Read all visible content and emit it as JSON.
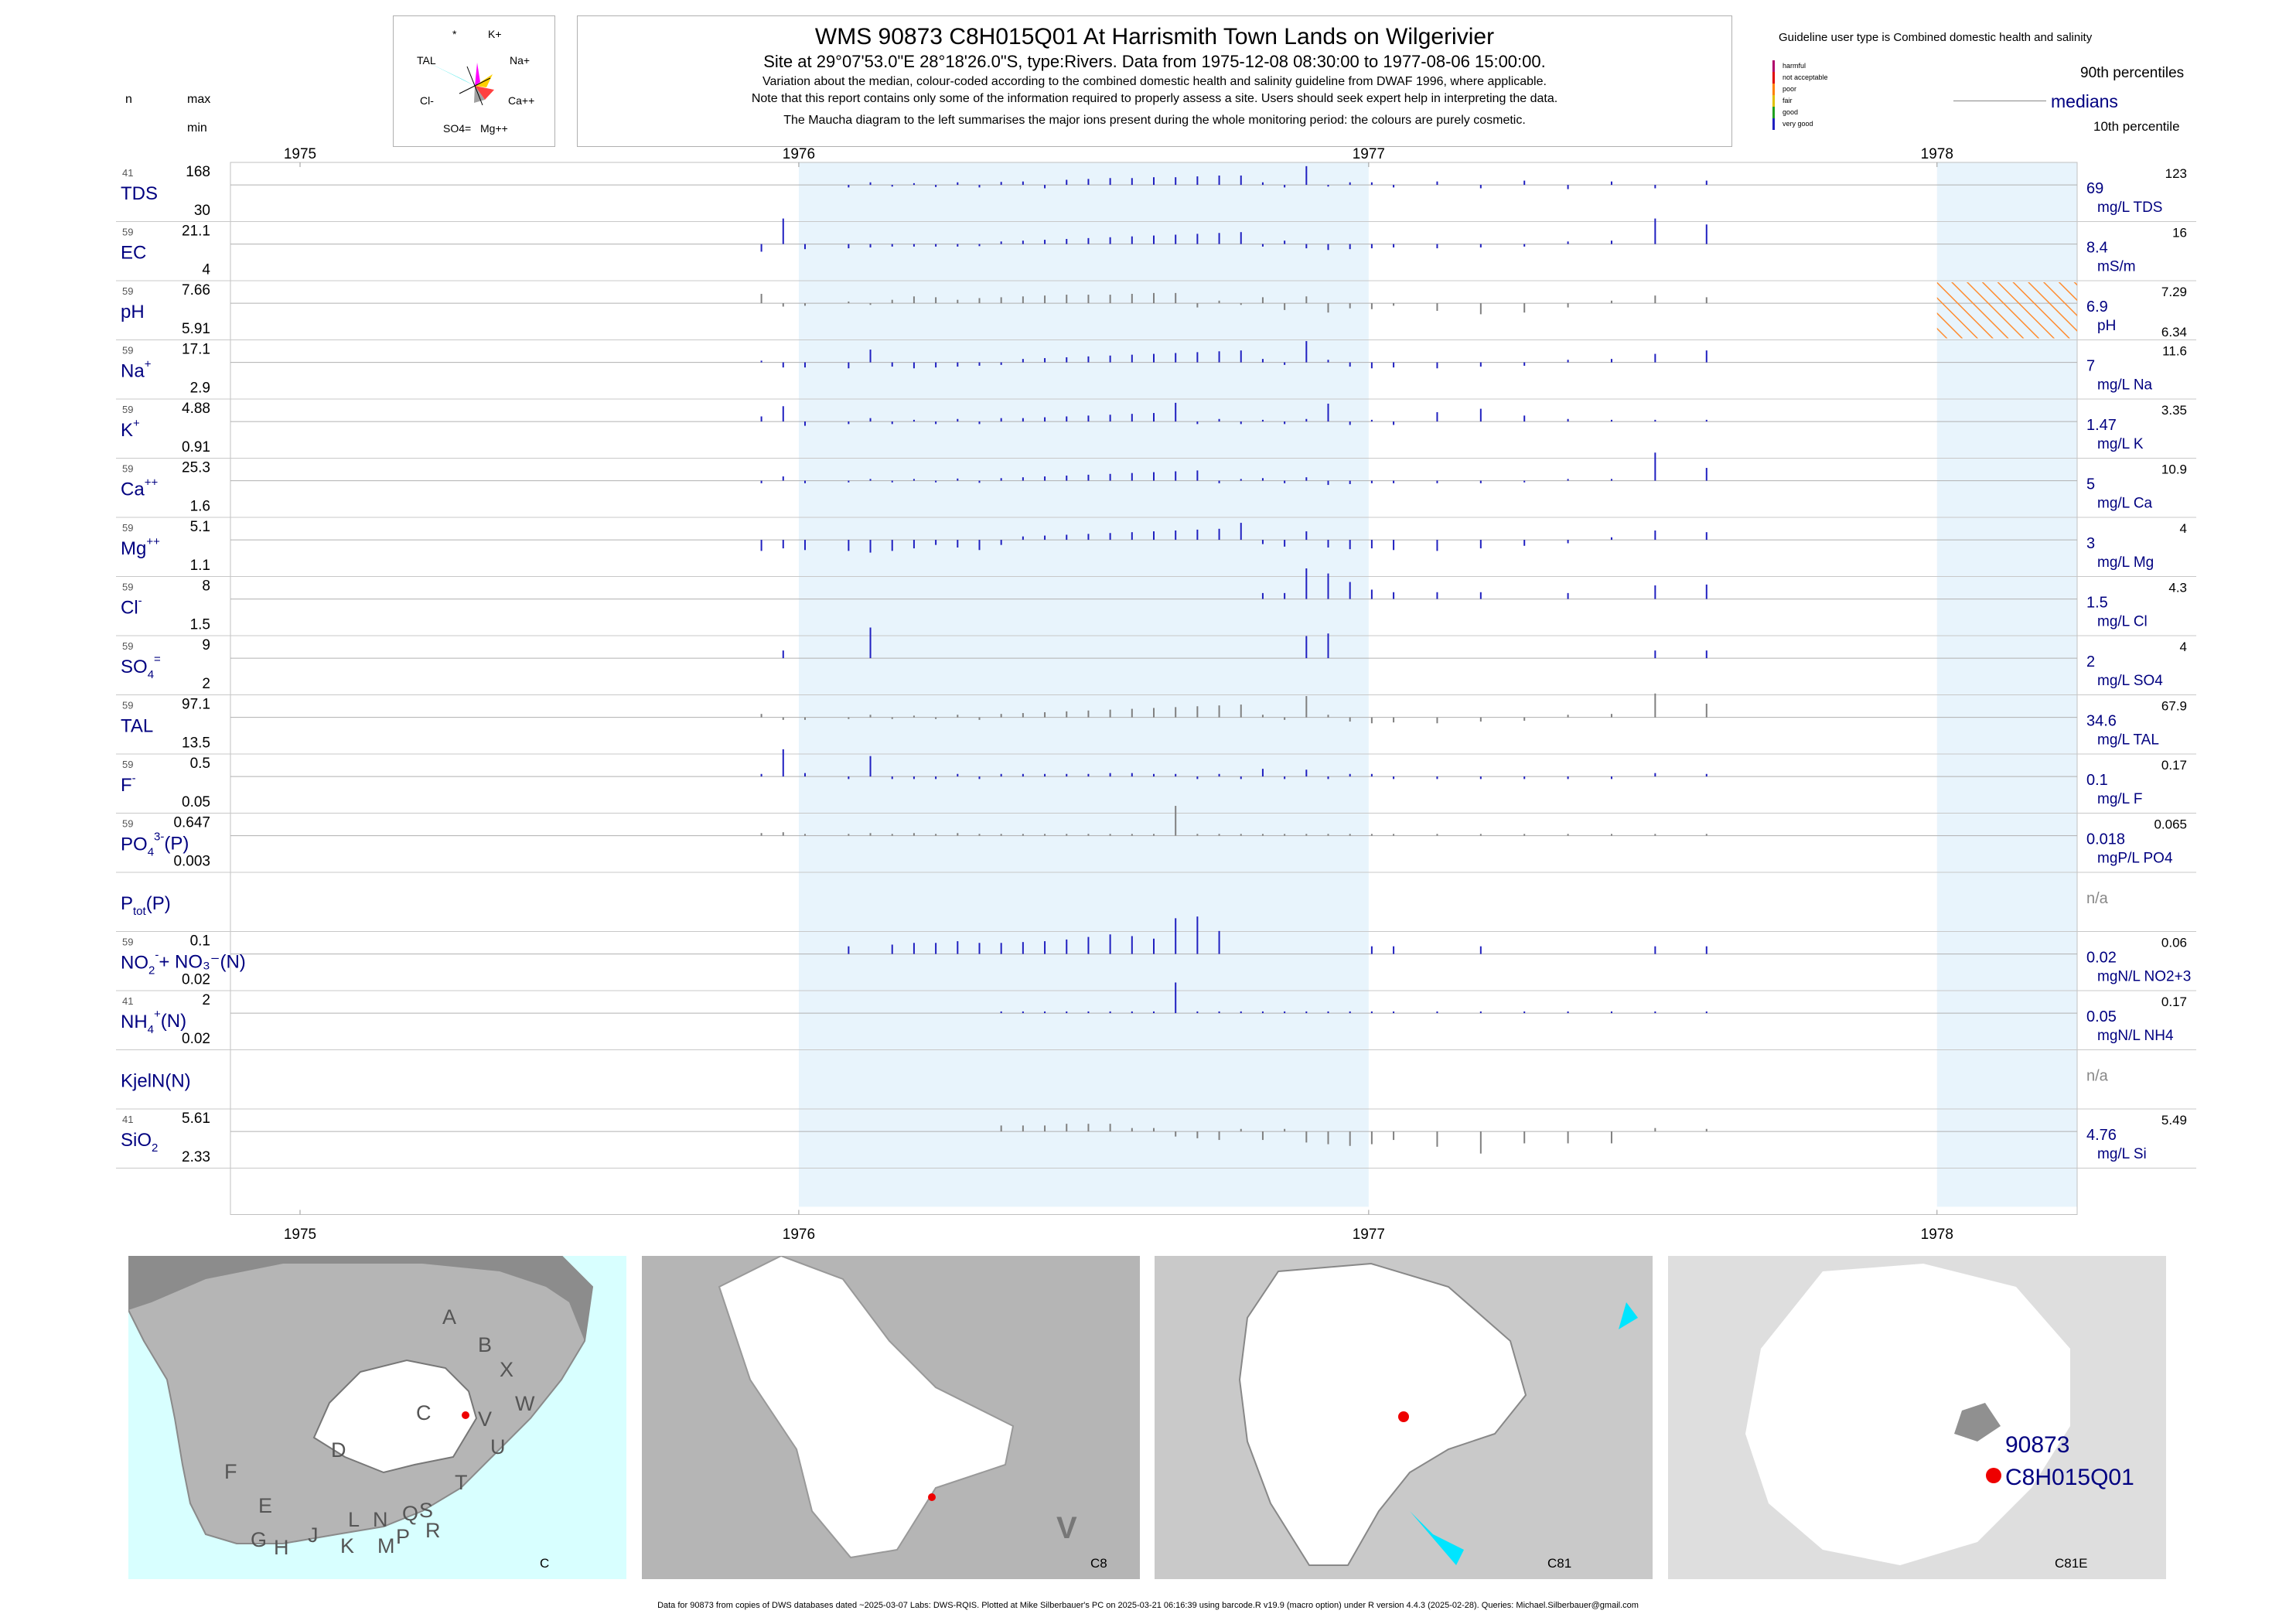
{
  "header": {
    "title": "WMS 90873 C8H015Q01 At Harrismith Town Lands on Wilgerivier",
    "subtitle": "Site at 29°07'53.0\"E 28°18'26.0\"S, type:Rivers.  Data from 1975-12-08 08:30:00 to 1977-08-06 15:00:00.",
    "note1": "Variation about the median,  colour-coded according to the combined domestic health and salinity guideline from DWAF 1996, where applicable.",
    "note2": "Note that this report contains only some of the information required to properly assess a site. Users should seek expert help in interpreting the data.",
    "note3": "The Maucha diagram to the left summarises the major ions present during the whole monitoring period: the colours are purely cosmetic."
  },
  "col_headers": {
    "n": "n",
    "max": "max",
    "min": "min"
  },
  "maucha": {
    "labels": [
      "*",
      "K+",
      "TAL",
      "Na+",
      "Cl-",
      "Ca++",
      "SO4=",
      "Mg++"
    ]
  },
  "legend": {
    "guideline": "Guideline user type is Combined domestic health and salinity",
    "levels": [
      "harmful",
      "not acceptable",
      "poor",
      "fair",
      "good",
      "very good"
    ],
    "level_colors": [
      "#b0006a",
      "#e00000",
      "#ff8000",
      "#e0c000",
      "#20a020",
      "#2020c0"
    ],
    "p90": "90th percentiles",
    "median": "medians",
    "p10": "10th percentile"
  },
  "chart_data": {
    "type": "bar",
    "xlim": [
      "1975-01-01",
      "1978-04-01"
    ],
    "year_ticks": [
      "1975",
      "1976",
      "1977",
      "1978"
    ],
    "shaded_years": [
      "1976",
      "1978"
    ],
    "bar_dates": [
      "1975-12-08",
      "1975-12-22",
      "1976-01-05",
      "1976-02-02",
      "1976-02-16",
      "1976-03-01",
      "1976-03-15",
      "1976-03-29",
      "1976-04-12",
      "1976-04-26",
      "1976-05-10",
      "1976-05-24",
      "1976-06-07",
      "1976-06-21",
      "1976-07-05",
      "1976-07-19",
      "1976-08-02",
      "1976-08-16",
      "1976-08-30",
      "1976-09-13",
      "1976-09-27",
      "1976-10-11",
      "1976-10-25",
      "1976-11-08",
      "1976-11-22",
      "1976-12-06",
      "1976-12-20",
      "1977-01-03",
      "1977-01-17",
      "1977-02-14",
      "1977-03-14",
      "1977-04-11",
      "1977-05-09",
      "1977-06-06",
      "1977-07-04",
      "1977-08-06"
    ],
    "params": [
      {
        "label": "TDS",
        "sup": "",
        "sub": "",
        "n": "41",
        "max": "168",
        "min": "30",
        "median": "69",
        "p90": "123",
        "p10": "",
        "unit": "mg/L TDS",
        "color": "#2020c0",
        "bars": [
          0,
          0,
          0,
          -6,
          6,
          -4,
          4,
          -5,
          6,
          -6,
          7,
          8,
          -8,
          12,
          14,
          16,
          16,
          18,
          18,
          20,
          22,
          22,
          6,
          -6,
          44,
          -4,
          6,
          6,
          -6,
          8,
          -8,
          10,
          -10,
          8,
          -8,
          10
        ]
      },
      {
        "label": "EC",
        "sup": "",
        "sub": "",
        "n": "59",
        "max": "21.1",
        "min": "4",
        "median": "8.4",
        "p90": "16",
        "p10": "",
        "unit": "mS/m",
        "color": "#2020c0",
        "bars": [
          -18,
          60,
          -12,
          -10,
          -8,
          -6,
          -6,
          -6,
          -6,
          -5,
          6,
          8,
          10,
          12,
          14,
          16,
          18,
          20,
          22,
          24,
          26,
          28,
          -6,
          8,
          -10,
          -14,
          -12,
          -10,
          -8,
          -10,
          -8,
          -6,
          6,
          8,
          60,
          46
        ]
      },
      {
        "label": "pH",
        "sup": "",
        "sub": "",
        "n": "59",
        "max": "7.66",
        "min": "5.91",
        "median": "6.9",
        "p90": "7.29",
        "p10": "6.34",
        "unit": "pH",
        "color": "#808080",
        "hatch": true,
        "bars": [
          22,
          -8,
          -6,
          4,
          -4,
          8,
          16,
          14,
          8,
          12,
          14,
          16,
          18,
          20,
          20,
          20,
          22,
          24,
          24,
          -10,
          6,
          -4,
          14,
          -16,
          16,
          -22,
          -12,
          -14,
          -6,
          -18,
          -26,
          -22,
          -10,
          6,
          18,
          14
        ]
      },
      {
        "label": "Na",
        "sup": "+",
        "sub": "",
        "n": "59",
        "max": "17.1",
        "min": "2.9",
        "median": "7",
        "p90": "11.6",
        "p10": "",
        "unit": "mg/L Na",
        "color": "#2020c0",
        "bars": [
          4,
          -12,
          -12,
          -14,
          30,
          -10,
          -14,
          -12,
          -10,
          -8,
          -6,
          8,
          10,
          12,
          14,
          16,
          18,
          20,
          22,
          24,
          26,
          28,
          8,
          -6,
          50,
          6,
          -10,
          -14,
          -12,
          -14,
          -10,
          -8,
          6,
          8,
          20,
          28
        ]
      },
      {
        "label": "K",
        "sup": "+",
        "sub": "",
        "n": "59",
        "max": "4.88",
        "min": "0.91",
        "median": "1.47",
        "p90": "3.35",
        "p10": "",
        "unit": "mg/L K",
        "color": "#2020c0",
        "bars": [
          12,
          36,
          -10,
          -6,
          8,
          -6,
          4,
          -6,
          6,
          -6,
          8,
          8,
          10,
          12,
          14,
          16,
          18,
          20,
          44,
          -6,
          6,
          -6,
          4,
          -6,
          6,
          42,
          -8,
          4,
          -8,
          22,
          30,
          14,
          6,
          4,
          4,
          4
        ]
      },
      {
        "label": "Ca",
        "sup": "++",
        "sub": "",
        "n": "59",
        "max": "25.3",
        "min": "1.6",
        "median": "5",
        "p90": "10.9",
        "p10": "",
        "unit": "mg/L Ca",
        "color": "#2020c0",
        "bars": [
          -6,
          10,
          -6,
          -4,
          4,
          -4,
          4,
          -4,
          5,
          -5,
          6,
          8,
          10,
          12,
          14,
          16,
          18,
          20,
          22,
          24,
          -6,
          4,
          6,
          -6,
          8,
          -10,
          -8,
          -6,
          -6,
          -6,
          -6,
          -4,
          4,
          4,
          66,
          30
        ]
      },
      {
        "label": "Mg",
        "sup": "++",
        "sub": "",
        "n": "59",
        "max": "5.1",
        "min": "1.1",
        "median": "3",
        "p90": "4",
        "p10": "",
        "unit": "mg/L Mg",
        "color": "#2020c0",
        "bars": [
          -26,
          -20,
          -24,
          -26,
          -30,
          -26,
          -20,
          -12,
          -18,
          -24,
          -12,
          8,
          10,
          12,
          14,
          16,
          18,
          20,
          22,
          24,
          26,
          40,
          -10,
          -16,
          20,
          -18,
          -22,
          -20,
          -24,
          -26,
          -20,
          -14,
          -8,
          6,
          22,
          18
        ]
      },
      {
        "label": "Cl",
        "sup": "-",
        "sub": "",
        "n": "59",
        "max": "8",
        "min": "1.5",
        "median": "1.5",
        "p90": "4.3",
        "p10": "",
        "unit": "mg/L Cl",
        "color": "#2020c0",
        "bars": [
          0,
          0,
          0,
          0,
          0,
          0,
          0,
          0,
          0,
          0,
          0,
          0,
          0,
          0,
          0,
          0,
          0,
          0,
          0,
          0,
          0,
          0,
          14,
          14,
          72,
          60,
          40,
          22,
          16,
          16,
          16,
          0,
          14,
          0,
          32,
          34
        ]
      },
      {
        "label": "SO",
        "sup": "=",
        "sub": "4",
        "n": "59",
        "max": "9",
        "min": "2",
        "median": "2",
        "p90": "4",
        "p10": "",
        "unit": "mg/L SO4",
        "color": "#2020c0",
        "bars": [
          0,
          18,
          0,
          0,
          72,
          0,
          0,
          0,
          0,
          0,
          0,
          0,
          0,
          0,
          0,
          0,
          0,
          0,
          0,
          0,
          0,
          0,
          0,
          0,
          52,
          58,
          0,
          0,
          0,
          0,
          0,
          0,
          0,
          0,
          18,
          18
        ]
      },
      {
        "label": "TAL",
        "sup": "",
        "sub": "",
        "n": "59",
        "max": "97.1",
        "min": "13.5",
        "median": "34.6",
        "p90": "67.9",
        "p10": "",
        "unit": "mg/L TAL",
        "color": "#808080",
        "bars": [
          8,
          -6,
          -6,
          -4,
          6,
          -4,
          4,
          -4,
          6,
          -6,
          8,
          10,
          12,
          14,
          16,
          18,
          20,
          22,
          24,
          26,
          28,
          30,
          6,
          -6,
          50,
          6,
          -10,
          -14,
          -12,
          -14,
          -10,
          -8,
          6,
          8,
          56,
          32
        ]
      },
      {
        "label": "F",
        "sup": "-",
        "sub": "",
        "n": "59",
        "max": "0.5",
        "min": "0.05",
        "median": "0.1",
        "p90": "0.17",
        "p10": "",
        "unit": "mg/L F",
        "color": "#2020c0",
        "bars": [
          6,
          64,
          8,
          -6,
          48,
          -6,
          -6,
          -6,
          6,
          -6,
          6,
          6,
          6,
          6,
          6,
          8,
          8,
          6,
          6,
          -6,
          6,
          -6,
          18,
          -6,
          16,
          -6,
          6,
          6,
          -6,
          -6,
          -6,
          -6,
          -6,
          -6,
          8,
          6
        ]
      },
      {
        "label": "PO",
        "sup": "3-",
        "sub": "4",
        "suffix": "(P)",
        "n": "59",
        "max": "0.647",
        "min": "0.003",
        "median": "0.018",
        "p90": "0.065",
        "p10": "",
        "unit": "mgP/L PO4",
        "color": "#808080",
        "bars": [
          6,
          8,
          4,
          4,
          6,
          4,
          6,
          4,
          6,
          4,
          4,
          4,
          4,
          4,
          4,
          4,
          4,
          4,
          70,
          4,
          4,
          4,
          4,
          4,
          4,
          4,
          4,
          4,
          4,
          4,
          4,
          4,
          4,
          4,
          4,
          4
        ]
      },
      {
        "label": "P",
        "sub": "tot",
        "suffix": "(P)",
        "n": "",
        "max": "",
        "min": "",
        "median": "n/a",
        "p90": "",
        "p10": "",
        "unit": "",
        "color": "#808080",
        "na": true,
        "bars": []
      },
      {
        "label": "NO",
        "sup": "-",
        "sub": "2",
        "suffix": "+ NO₃⁻(N)",
        "n": "59",
        "max": "0.1",
        "min": "0.02",
        "median": "0.02",
        "p90": "0.06",
        "p10": "",
        "unit": "mgN/L NO2+3",
        "color": "#2020c0",
        "bars": [
          0,
          0,
          0,
          18,
          0,
          22,
          26,
          26,
          30,
          26,
          26,
          28,
          30,
          34,
          40,
          46,
          42,
          36,
          84,
          88,
          54,
          0,
          0,
          0,
          0,
          0,
          0,
          18,
          18,
          0,
          18,
          0,
          0,
          0,
          18,
          18
        ]
      },
      {
        "label": "NH",
        "sup": "+",
        "sub": "4",
        "suffix": "(N)",
        "n": "41",
        "max": "2",
        "min": "0.02",
        "median": "0.05",
        "p90": "0.17",
        "p10": "",
        "unit": "mgN/L NH4",
        "color": "#2020c0",
        "bars": [
          0,
          0,
          0,
          0,
          0,
          0,
          0,
          0,
          0,
          0,
          4,
          4,
          4,
          4,
          4,
          4,
          4,
          4,
          72,
          4,
          4,
          4,
          4,
          4,
          4,
          4,
          4,
          4,
          4,
          4,
          4,
          4,
          4,
          4,
          4,
          4
        ]
      },
      {
        "label": "KjelN(N)",
        "sup": "",
        "sub": "",
        "n": "",
        "max": "",
        "min": "",
        "median": "n/a",
        "p90": "",
        "p10": "",
        "unit": "",
        "color": "#808080",
        "na": true,
        "bars": []
      },
      {
        "label": "SiO",
        "sup": "",
        "sub": "2",
        "n": "41",
        "max": "5.61",
        "min": "2.33",
        "median": "4.76",
        "p90": "5.49",
        "p10": "",
        "unit": "mg/L Si",
        "color": "#808080",
        "bars": [
          0,
          0,
          0,
          0,
          0,
          0,
          0,
          0,
          0,
          0,
          14,
          14,
          14,
          18,
          18,
          18,
          8,
          8,
          -12,
          -16,
          -20,
          6,
          -20,
          6,
          -26,
          -30,
          -34,
          -30,
          -20,
          -36,
          -52,
          -28,
          -28,
          -28,
          8,
          6
        ]
      }
    ]
  },
  "maps": [
    {
      "label": "C",
      "letters": [
        "A",
        "B",
        "X",
        "W",
        "C",
        "V",
        "U",
        "D",
        "T",
        "F",
        "E",
        "G",
        "H",
        "J",
        "K",
        "L",
        "N",
        "M",
        "Q",
        "P",
        "S",
        "R"
      ]
    },
    {
      "label": "C8",
      "letters": [
        "V"
      ]
    },
    {
      "label": "C81",
      "letters": []
    },
    {
      "label": "C81E",
      "site_id": "90873",
      "site_code": "C8H015Q01",
      "letters": []
    }
  ],
  "footer": "Data for 90873 from copies of DWS databases dated ~2025-03-07 Labs: DWS-RQIS. Plotted at Mike Silberbauer's PC on 2025-03-21 06:16:39 using barcode.R v19.9 (macro option) under R version 4.4.3 (2025-02-28). Queries: Michael.Silberbauer@gmail.com"
}
